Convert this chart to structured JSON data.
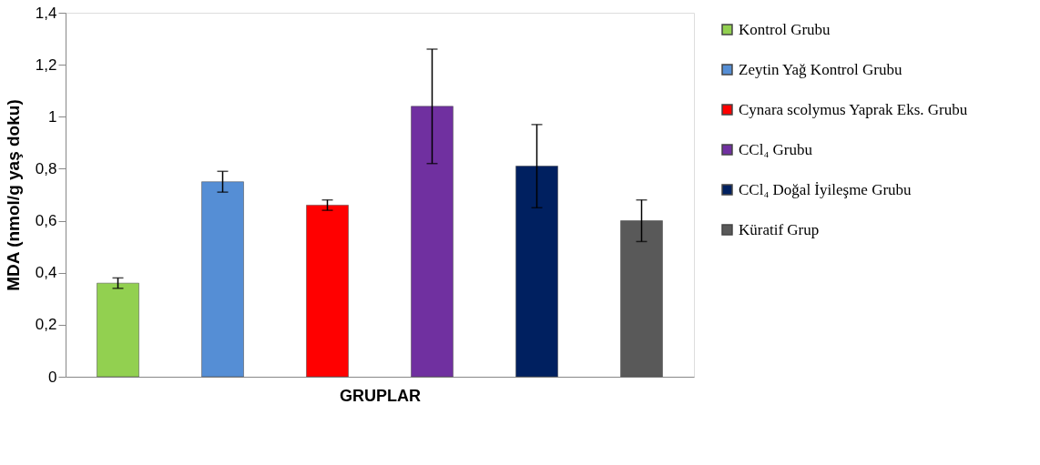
{
  "chart_data": {
    "type": "bar",
    "xlabel": "GRUPLAR",
    "ylabel": "MDA (nmol/g yaş doku)",
    "categories": [
      null,
      null,
      null,
      null,
      null,
      null
    ],
    "series": [
      {
        "name": "Kontrol Grubu",
        "color": "#92d050",
        "values": [
          0.36,
          null,
          null,
          null,
          null,
          null
        ],
        "errors": [
          [
            0.34,
            0.38
          ],
          null,
          null,
          null,
          null,
          null
        ]
      },
      {
        "name": "Zeytin Yağ Kontrol Grubu",
        "color": "#558ed5",
        "values": [
          null,
          0.75,
          null,
          null,
          null,
          null
        ],
        "errors": [
          null,
          [
            0.71,
            0.79
          ],
          null,
          null,
          null,
          null
        ]
      },
      {
        "name": "Cynara scolymus Yaprak Eks. Grubu",
        "color": "#ff0000",
        "values": [
          null,
          null,
          0.66,
          null,
          null,
          null
        ],
        "errors": [
          null,
          null,
          [
            0.64,
            0.68
          ],
          null,
          null,
          null
        ]
      },
      {
        "name": "CCl₄ Grubu",
        "color": "#7030a0",
        "values": [
          null,
          null,
          null,
          1.04,
          null,
          null
        ],
        "errors": [
          null,
          null,
          null,
          [
            0.82,
            1.26
          ],
          null,
          null
        ]
      },
      {
        "name": "CCl₄  Doğal İyileşme Grubu",
        "color": "#002060",
        "values": [
          null,
          null,
          null,
          null,
          0.81,
          null
        ],
        "errors": [
          null,
          null,
          null,
          null,
          [
            0.65,
            0.97
          ],
          null
        ]
      },
      {
        "name": "Küratif Grup",
        "color": "#595959",
        "values": [
          null,
          null,
          null,
          null,
          null,
          0.6
        ],
        "errors": [
          null,
          null,
          null,
          null,
          null,
          [
            0.52,
            0.68
          ]
        ]
      }
    ],
    "ylim": [
      0,
      1.4
    ],
    "yticks": [
      0,
      {
        "value": 0.2,
        "label": "0,2"
      },
      {
        "value": 0.4,
        "label": "0,4"
      },
      {
        "value": 0.6,
        "label": "0,6"
      },
      {
        "value": 0.8,
        "label": "0,8"
      },
      1,
      {
        "value": 1.2,
        "label": "1,2"
      },
      {
        "value": 1.4,
        "label": "1,4"
      }
    ],
    "tick_labels": "y",
    "grid": false,
    "legend": "right"
  }
}
